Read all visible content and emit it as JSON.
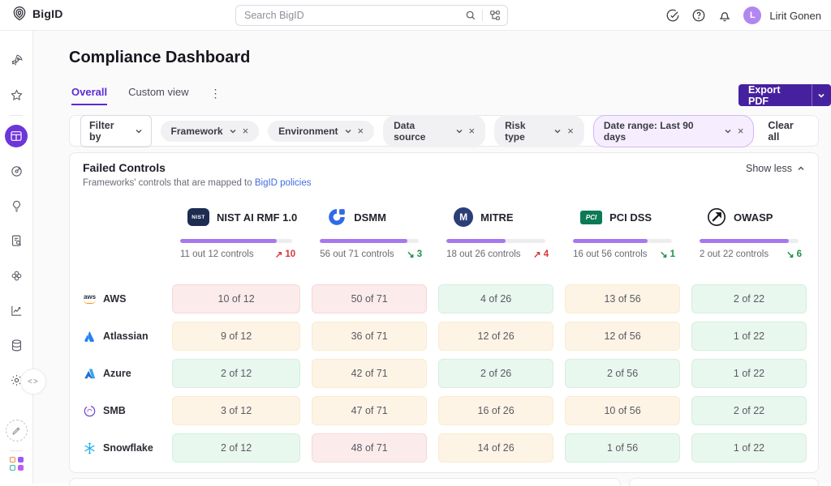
{
  "topbar": {
    "brand": "BigID",
    "search": {
      "placeholder": "Search BigID"
    },
    "user": {
      "name": "Lirit Gonen",
      "avatar_initial": "L"
    }
  },
  "sidebar": {
    "items": [
      {
        "name": "getting-started",
        "icon": "rocket-icon"
      },
      {
        "name": "favorites",
        "icon": "star-icon"
      },
      {
        "name": "divider",
        "icon": "divider"
      },
      {
        "name": "dashboard",
        "icon": "dashboard-icon",
        "active": true
      },
      {
        "name": "risk",
        "icon": "target-icon"
      },
      {
        "name": "insights",
        "icon": "lightbulb-icon"
      },
      {
        "name": "reports",
        "icon": "document-search-icon"
      },
      {
        "name": "integrations",
        "icon": "flower-icon"
      },
      {
        "name": "analytics",
        "icon": "line-chart-icon"
      },
      {
        "name": "data",
        "icon": "database-icon"
      },
      {
        "name": "settings",
        "icon": "gear-icon"
      }
    ],
    "footer_icons": [
      "collapse-icon",
      "pencil-icon",
      "apps-grid-icon"
    ]
  },
  "page": {
    "title": "Compliance Dashboard",
    "tabs": [
      {
        "label": "Overall",
        "active": true
      },
      {
        "label": "Custom view",
        "active": false
      }
    ],
    "export_button": {
      "label": "Export PDF"
    }
  },
  "filters": {
    "filter_by_label": "Filter by",
    "pills": [
      {
        "label": "Framework",
        "highlighted": false
      },
      {
        "label": "Environment",
        "highlighted": false
      },
      {
        "label": "Data source",
        "highlighted": false
      },
      {
        "label": "Risk type",
        "highlighted": false
      },
      {
        "label": "Date range: Last 90 days",
        "highlighted": true
      }
    ],
    "clear_all_label": "Clear all"
  },
  "failed_controls": {
    "title": "Failed Controls",
    "subtitle_prefix": "Frameworks' controls that are mapped to ",
    "subtitle_link": "BigID policies",
    "show_less_label": "Show less",
    "frameworks": [
      {
        "name": "NIST AI RMF 1.0",
        "logo": {
          "kind": "nist",
          "text": "NIST"
        },
        "stats": "11 out 12 controls",
        "trend": {
          "direction": "up",
          "value": 10
        },
        "progress_pct": 86
      },
      {
        "name": "DSMM",
        "logo": {
          "kind": "dsmm"
        },
        "stats": "56 out 71 controls",
        "trend": {
          "direction": "down",
          "value": 3
        },
        "progress_pct": 88
      },
      {
        "name": "MITRE",
        "logo": {
          "kind": "mitre",
          "text": "M"
        },
        "stats": "18 out 26 controls",
        "trend": {
          "direction": "up",
          "value": 4
        },
        "progress_pct": 60
      },
      {
        "name": "PCI DSS",
        "logo": {
          "kind": "pci",
          "text": "PCI"
        },
        "stats": "16 out 56 controls",
        "trend": {
          "direction": "down",
          "value": 1
        },
        "progress_pct": 75
      },
      {
        "name": "OWASP",
        "logo": {
          "kind": "owasp"
        },
        "stats": "2 out 22 controls",
        "trend": {
          "direction": "down",
          "value": 6
        },
        "progress_pct": 90
      }
    ],
    "rows": [
      {
        "name": "AWS",
        "logo": "aws",
        "cells": [
          {
            "text": "10 of 12",
            "level": "high"
          },
          {
            "text": "50 of 71",
            "level": "high"
          },
          {
            "text": "4 of 26",
            "level": "low"
          },
          {
            "text": "13 of 56",
            "level": "medium"
          },
          {
            "text": "2 of 22",
            "level": "low"
          }
        ]
      },
      {
        "name": "Atlassian",
        "logo": "atlassian",
        "cells": [
          {
            "text": "9 of 12",
            "level": "medium"
          },
          {
            "text": "36 of 71",
            "level": "medium"
          },
          {
            "text": "12 of 26",
            "level": "medium"
          },
          {
            "text": "12 of 56",
            "level": "medium"
          },
          {
            "text": "1 of 22",
            "level": "low"
          }
        ]
      },
      {
        "name": "Azure",
        "logo": "azure",
        "cells": [
          {
            "text": "2 of 12",
            "level": "low"
          },
          {
            "text": "42 of 71",
            "level": "medium"
          },
          {
            "text": "2 of 26",
            "level": "low"
          },
          {
            "text": "2 of 56",
            "level": "low"
          },
          {
            "text": "1 of 22",
            "level": "low"
          }
        ]
      },
      {
        "name": "SMB",
        "logo": "smb",
        "cells": [
          {
            "text": "3 of 12",
            "level": "medium"
          },
          {
            "text": "47 of 71",
            "level": "medium"
          },
          {
            "text": "16 of 26",
            "level": "medium"
          },
          {
            "text": "10 of 56",
            "level": "medium"
          },
          {
            "text": "2 of 22",
            "level": "low"
          }
        ]
      },
      {
        "name": "Snowflake",
        "logo": "snowflake",
        "cells": [
          {
            "text": "2 of 12",
            "level": "low"
          },
          {
            "text": "48 of 71",
            "level": "high"
          },
          {
            "text": "14 of 26",
            "level": "medium"
          },
          {
            "text": "1 of 56",
            "level": "low"
          },
          {
            "text": "1 of 22",
            "level": "low"
          }
        ]
      }
    ]
  },
  "colors": {
    "accent_purple": "#5b2bd5",
    "sidebar_active": "#6d35da",
    "export_button": "#46219f",
    "progress_fill": "#a678ee",
    "trend_up_red": "#d8363c",
    "trend_down_green": "#1f8f4a",
    "cell_high_bg": "#fcebeb",
    "cell_medium_bg": "#fdf4e6",
    "cell_low_bg": "#e8f8ef",
    "link_blue": "#3f6ce0",
    "avatar_purple": "#b286ef",
    "date_pill_bg": "#f6eefe",
    "date_pill_border": "#d3b6f6"
  }
}
